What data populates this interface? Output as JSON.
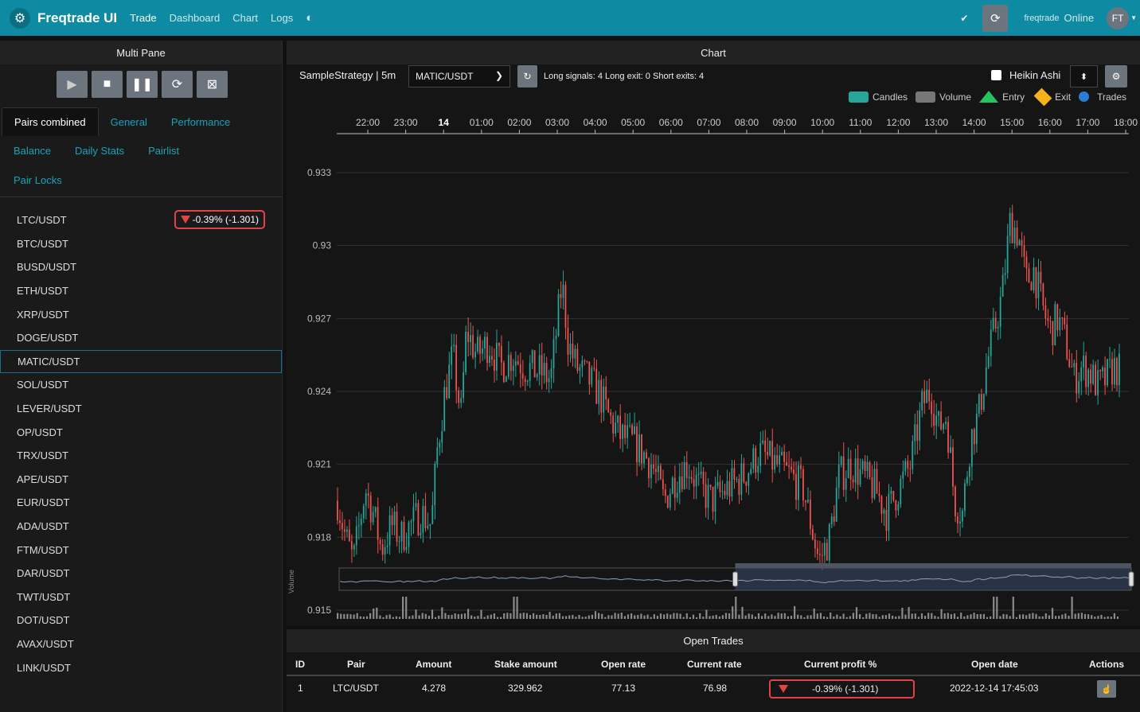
{
  "navbar": {
    "brand": "Freqtrade UI",
    "links": [
      "Trade",
      "Dashboard",
      "Chart",
      "Logs"
    ],
    "bot_name": "freqtrade",
    "status": "Online",
    "avatar": "FT",
    "bg_color": "#0e8ba3"
  },
  "left_pane": {
    "title": "Multi Pane",
    "controls": [
      "play-icon",
      "stop-icon",
      "pause-icon",
      "reload-icon",
      "force-exit-icon"
    ],
    "tabs": [
      "Pairs combined",
      "General",
      "Performance"
    ],
    "subtabs": [
      "Balance",
      "Daily Stats",
      "Pairlist",
      "Pair Locks"
    ],
    "pairs": [
      "LTC/USDT",
      "BTC/USDT",
      "BUSD/USDT",
      "ETH/USDT",
      "XRP/USDT",
      "DOGE/USDT",
      "MATIC/USDT",
      "SOL/USDT",
      "LEVER/USDT",
      "OP/USDT",
      "TRX/USDT",
      "APE/USDT",
      "EUR/USDT",
      "ADA/USDT",
      "FTM/USDT",
      "DAR/USDT",
      "TWT/USDT",
      "DOT/USDT",
      "AVAX/USDT",
      "LINK/USDT"
    ],
    "selected_pair": "MATIC/USDT",
    "ltc_profit": "-0.39% (-1.301)"
  },
  "chart_pane": {
    "title": "Chart",
    "strategy": "SampleStrategy | 5m",
    "pair": "MATIC/USDT",
    "signals": "Long signals: 4   Long exit: 0   Short exits: 4",
    "heikin_ashi": "Heikin Ashi",
    "legend": [
      "Candles",
      "Volume",
      "Entry",
      "Exit",
      "Trades"
    ],
    "volume_axis": "Volume",
    "colors": {
      "up": "#26a69a",
      "down": "#ef5350",
      "entry": "#22c55e",
      "exit": "#f5b21b",
      "trades": "#2b7bd8"
    }
  },
  "chart_data": {
    "type": "candlestick",
    "x_ticks": [
      "22:00",
      "23:00",
      "14",
      "01:00",
      "02:00",
      "03:00",
      "04:00",
      "05:00",
      "06:00",
      "07:00",
      "08:00",
      "09:00",
      "10:00",
      "11:00",
      "12:00",
      "13:00",
      "14:00",
      "15:00",
      "16:00",
      "17:00",
      "18:00"
    ],
    "y_ticks": [
      "0.933",
      "0.93",
      "0.927",
      "0.924",
      "0.921",
      "0.918",
      "0.915"
    ],
    "ylim": [
      0.915,
      0.933
    ],
    "close_path": [
      [
        0,
        0.9195
      ],
      [
        10,
        0.918
      ],
      [
        20,
        0.917
      ],
      [
        35,
        0.92
      ],
      [
        45,
        0.919
      ],
      [
        55,
        0.9175
      ],
      [
        68,
        0.9185
      ],
      [
        80,
        0.918
      ],
      [
        92,
        0.9185
      ],
      [
        105,
        0.919
      ],
      [
        118,
        0.9185
      ],
      [
        125,
        0.9215
      ],
      [
        135,
        0.924
      ],
      [
        145,
        0.9255
      ],
      [
        155,
        0.923
      ],
      [
        162,
        0.9265
      ],
      [
        175,
        0.9255
      ],
      [
        190,
        0.926
      ],
      [
        205,
        0.925
      ],
      [
        220,
        0.9255
      ],
      [
        235,
        0.925
      ],
      [
        255,
        0.9248
      ],
      [
        268,
        0.9245
      ],
      [
        282,
        0.9285
      ],
      [
        290,
        0.926
      ],
      [
        300,
        0.925
      ],
      [
        315,
        0.9245
      ],
      [
        328,
        0.924
      ],
      [
        340,
        0.923
      ],
      [
        355,
        0.9222
      ],
      [
        375,
        0.9218
      ],
      [
        395,
        0.921
      ],
      [
        410,
        0.9195
      ],
      [
        425,
        0.9205
      ],
      [
        440,
        0.921
      ],
      [
        455,
        0.92
      ],
      [
        470,
        0.9195
      ],
      [
        490,
        0.92
      ],
      [
        510,
        0.9205
      ],
      [
        530,
        0.9215
      ],
      [
        550,
        0.921
      ],
      [
        570,
        0.9205
      ],
      [
        585,
        0.92
      ],
      [
        595,
        0.9185
      ],
      [
        605,
        0.917
      ],
      [
        618,
        0.918
      ],
      [
        630,
        0.9205
      ],
      [
        645,
        0.921
      ],
      [
        660,
        0.9205
      ],
      [
        675,
        0.92
      ],
      [
        690,
        0.919
      ],
      [
        705,
        0.92
      ],
      [
        720,
        0.921
      ],
      [
        735,
        0.9235
      ],
      [
        745,
        0.924
      ],
      [
        755,
        0.9225
      ],
      [
        765,
        0.923
      ],
      [
        775,
        0.9195
      ],
      [
        785,
        0.919
      ],
      [
        795,
        0.922
      ],
      [
        805,
        0.923
      ],
      [
        815,
        0.925
      ],
      [
        825,
        0.9265
      ],
      [
        835,
        0.928
      ],
      [
        845,
        0.931
      ],
      [
        855,
        0.9305
      ],
      [
        865,
        0.9285
      ],
      [
        875,
        0.929
      ],
      [
        885,
        0.9275
      ],
      [
        895,
        0.9265
      ],
      [
        905,
        0.927
      ],
      [
        915,
        0.926
      ],
      [
        925,
        0.9245
      ],
      [
        935,
        0.925
      ],
      [
        945,
        0.9248
      ],
      [
        955,
        0.9242
      ],
      [
        965,
        0.9245
      ],
      [
        975,
        0.925
      ],
      [
        985,
        0.9248
      ],
      [
        995,
        0.9245
      ]
    ],
    "volume_spike_x": [
      84,
      224,
      500,
      826,
      848,
      922
    ],
    "navigator_range": [
      0.5,
      1.0
    ]
  },
  "trades": {
    "title": "Open Trades",
    "columns": [
      "ID",
      "Pair",
      "Amount",
      "Stake amount",
      "Open rate",
      "Current rate",
      "Current profit %",
      "Open date",
      "Actions"
    ],
    "rows": [
      {
        "id": "1",
        "pair": "LTC/USDT",
        "amount": "4.278",
        "stake": "329.962",
        "open_rate": "77.13",
        "current_rate": "76.98",
        "profit": "-0.39% (-1.301)",
        "open_date": "2022-12-14 17:45:03"
      }
    ]
  }
}
